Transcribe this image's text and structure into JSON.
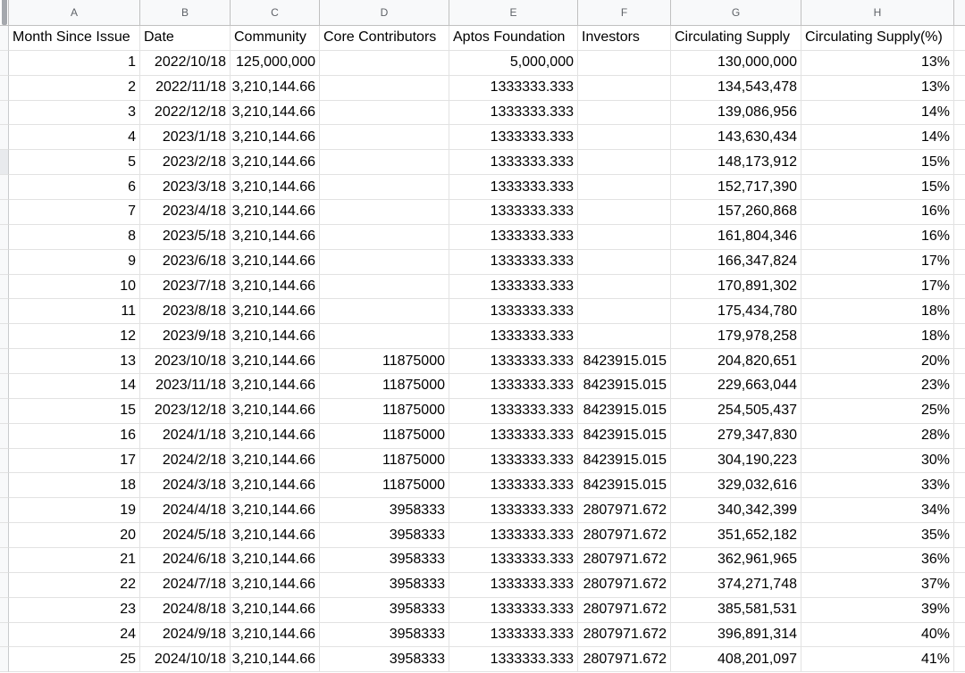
{
  "sheet": {
    "columns": [
      {
        "letter": "A",
        "width": 147
      },
      {
        "letter": "B",
        "width": 101
      },
      {
        "letter": "C",
        "width": 100
      },
      {
        "letter": "D",
        "width": 145
      },
      {
        "letter": "E",
        "width": 144
      },
      {
        "letter": "F",
        "width": 104
      },
      {
        "letter": "G",
        "width": 146
      },
      {
        "letter": "H",
        "width": 171
      }
    ],
    "field_headers": [
      "Month Since Issue",
      "Date",
      "Community",
      "Core Contributors",
      "Aptos Foundation",
      "Investors",
      "Circulating Supply",
      "Circulating Supply(%)"
    ],
    "data_rows": [
      [
        "1",
        "2022/10/18",
        "125,000,000",
        "",
        "5,000,000",
        "",
        "130,000,000",
        "13%"
      ],
      [
        "2",
        "2022/11/18",
        "3,210,144.66",
        "",
        "1333333.333",
        "",
        "134,543,478",
        "13%"
      ],
      [
        "3",
        "2022/12/18",
        "3,210,144.66",
        "",
        "1333333.333",
        "",
        "139,086,956",
        "14%"
      ],
      [
        "4",
        "2023/1/18",
        "3,210,144.66",
        "",
        "1333333.333",
        "",
        "143,630,434",
        "14%"
      ],
      [
        "5",
        "2023/2/18",
        "3,210,144.66",
        "",
        "1333333.333",
        "",
        "148,173,912",
        "15%"
      ],
      [
        "6",
        "2023/3/18",
        "3,210,144.66",
        "",
        "1333333.333",
        "",
        "152,717,390",
        "15%"
      ],
      [
        "7",
        "2023/4/18",
        "3,210,144.66",
        "",
        "1333333.333",
        "",
        "157,260,868",
        "16%"
      ],
      [
        "8",
        "2023/5/18",
        "3,210,144.66",
        "",
        "1333333.333",
        "",
        "161,804,346",
        "16%"
      ],
      [
        "9",
        "2023/6/18",
        "3,210,144.66",
        "",
        "1333333.333",
        "",
        "166,347,824",
        "17%"
      ],
      [
        "10",
        "2023/7/18",
        "3,210,144.66",
        "",
        "1333333.333",
        "",
        "170,891,302",
        "17%"
      ],
      [
        "11",
        "2023/8/18",
        "3,210,144.66",
        "",
        "1333333.333",
        "",
        "175,434,780",
        "18%"
      ],
      [
        "12",
        "2023/9/18",
        "3,210,144.66",
        "",
        "1333333.333",
        "",
        "179,978,258",
        "18%"
      ],
      [
        "13",
        "2023/10/18",
        "3,210,144.66",
        "11875000",
        "1333333.333",
        "8423915.015",
        "204,820,651",
        "20%"
      ],
      [
        "14",
        "2023/11/18",
        "3,210,144.66",
        "11875000",
        "1333333.333",
        "8423915.015",
        "229,663,044",
        "23%"
      ],
      [
        "15",
        "2023/12/18",
        "3,210,144.66",
        "11875000",
        "1333333.333",
        "8423915.015",
        "254,505,437",
        "25%"
      ],
      [
        "16",
        "2024/1/18",
        "3,210,144.66",
        "11875000",
        "1333333.333",
        "8423915.015",
        "279,347,830",
        "28%"
      ],
      [
        "17",
        "2024/2/18",
        "3,210,144.66",
        "11875000",
        "1333333.333",
        "8423915.015",
        "304,190,223",
        "30%"
      ],
      [
        "18",
        "2024/3/18",
        "3,210,144.66",
        "11875000",
        "1333333.333",
        "8423915.015",
        "329,032,616",
        "33%"
      ],
      [
        "19",
        "2024/4/18",
        "3,210,144.66",
        "3958333",
        "1333333.333",
        "2807971.672",
        "340,342,399",
        "34%"
      ],
      [
        "20",
        "2024/5/18",
        "3,210,144.66",
        "3958333",
        "1333333.333",
        "2807971.672",
        "351,652,182",
        "35%"
      ],
      [
        "21",
        "2024/6/18",
        "3,210,144.66",
        "3958333",
        "1333333.333",
        "2807971.672",
        "362,961,965",
        "36%"
      ],
      [
        "22",
        "2024/7/18",
        "3,210,144.66",
        "3958333",
        "1333333.333",
        "2807971.672",
        "374,271,748",
        "37%"
      ],
      [
        "23",
        "2024/8/18",
        "3,210,144.66",
        "3958333",
        "1333333.333",
        "2807971.672",
        "385,581,531",
        "39%"
      ],
      [
        "24",
        "2024/9/18",
        "3,210,144.66",
        "3958333",
        "1333333.333",
        "2807971.672",
        "396,891,314",
        "40%"
      ],
      [
        "25",
        "2024/10/18",
        "3,210,144.66",
        "3958333",
        "1333333.333",
        "2807971.672",
        "408,201,097",
        "41%"
      ]
    ],
    "highlighted_data_row_index": 4,
    "colors": {
      "header_bg": "#f8f9fa",
      "header_border": "#c0c0c0",
      "header_text": "#5f6368",
      "gridline": "#e2e2e2",
      "cell_text": "#000000",
      "strip_bg": "#f8f9fa",
      "strip_highlight": "#e8eaed",
      "corner_bar": "#a5a8ad"
    }
  }
}
